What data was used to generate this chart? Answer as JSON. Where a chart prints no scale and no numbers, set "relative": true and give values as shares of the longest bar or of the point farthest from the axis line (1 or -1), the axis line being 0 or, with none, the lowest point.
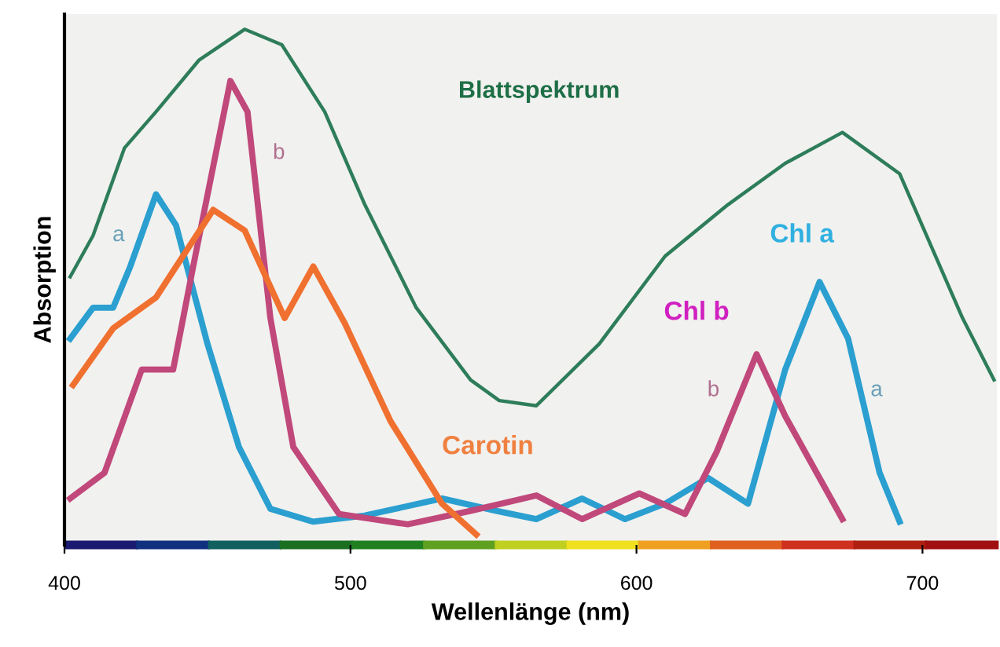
{
  "chart_data": {
    "type": "line",
    "relative": true,
    "xlabel": "Wellenlänge (nm)",
    "ylabel": "Absorption",
    "xlim": [
      400,
      726
    ],
    "xticks": [
      400,
      500,
      600,
      700
    ],
    "grid": false,
    "marker": "none",
    "line_style": "solid",
    "series": [
      {
        "color": "#2e7d5a",
        "x": [
          402,
          410,
          421,
          432,
          447,
          463,
          476,
          491,
          505,
          523,
          542,
          552,
          565,
          587,
          610,
          632,
          652,
          672,
          692,
          714,
          725
        ],
        "values": [
          0.52,
          0.6,
          0.77,
          0.84,
          0.94,
          1.0,
          0.97,
          0.84,
          0.66,
          0.46,
          0.32,
          0.28,
          0.27,
          0.39,
          0.56,
          0.66,
          0.74,
          0.8,
          0.72,
          0.44,
          0.32
        ]
      },
      {
        "color": "#2a9fd0",
        "x": [
          402,
          410,
          417,
          423,
          432,
          439,
          450,
          461,
          472,
          487,
          505,
          532,
          551,
          565,
          581,
          596,
          610,
          625,
          639,
          652,
          664,
          674,
          685,
          692
        ],
        "values": [
          0.4,
          0.46,
          0.46,
          0.54,
          0.68,
          0.62,
          0.39,
          0.19,
          0.07,
          0.045,
          0.057,
          0.09,
          0.066,
          0.05,
          0.09,
          0.05,
          0.08,
          0.13,
          0.08,
          0.34,
          0.51,
          0.4,
          0.14,
          0.045
        ]
      },
      {
        "color": "#c0487a",
        "x": [
          402,
          414,
          427,
          438,
          445,
          458,
          464,
          472,
          480,
          496,
          520,
          542,
          565,
          581,
          601,
          617,
          628,
          642,
          652,
          672
        ],
        "values": [
          0.09,
          0.14,
          0.34,
          0.34,
          0.54,
          0.9,
          0.84,
          0.44,
          0.19,
          0.06,
          0.04,
          0.066,
          0.096,
          0.05,
          0.1,
          0.06,
          0.18,
          0.37,
          0.25,
          0.05
        ]
      },
      {
        "color": "#f07030",
        "x": [
          403,
          417,
          432,
          452,
          463,
          477,
          487,
          498,
          514,
          532,
          544
        ],
        "values": [
          0.31,
          0.42,
          0.48,
          0.65,
          0.61,
          0.44,
          0.54,
          0.43,
          0.24,
          0.08,
          0.02
        ]
      }
    ],
    "annotations": [
      "Blattspektrum",
      "Chl a",
      "Chl b",
      "Carotin",
      "a",
      "b",
      "b",
      "a"
    ]
  }
}
